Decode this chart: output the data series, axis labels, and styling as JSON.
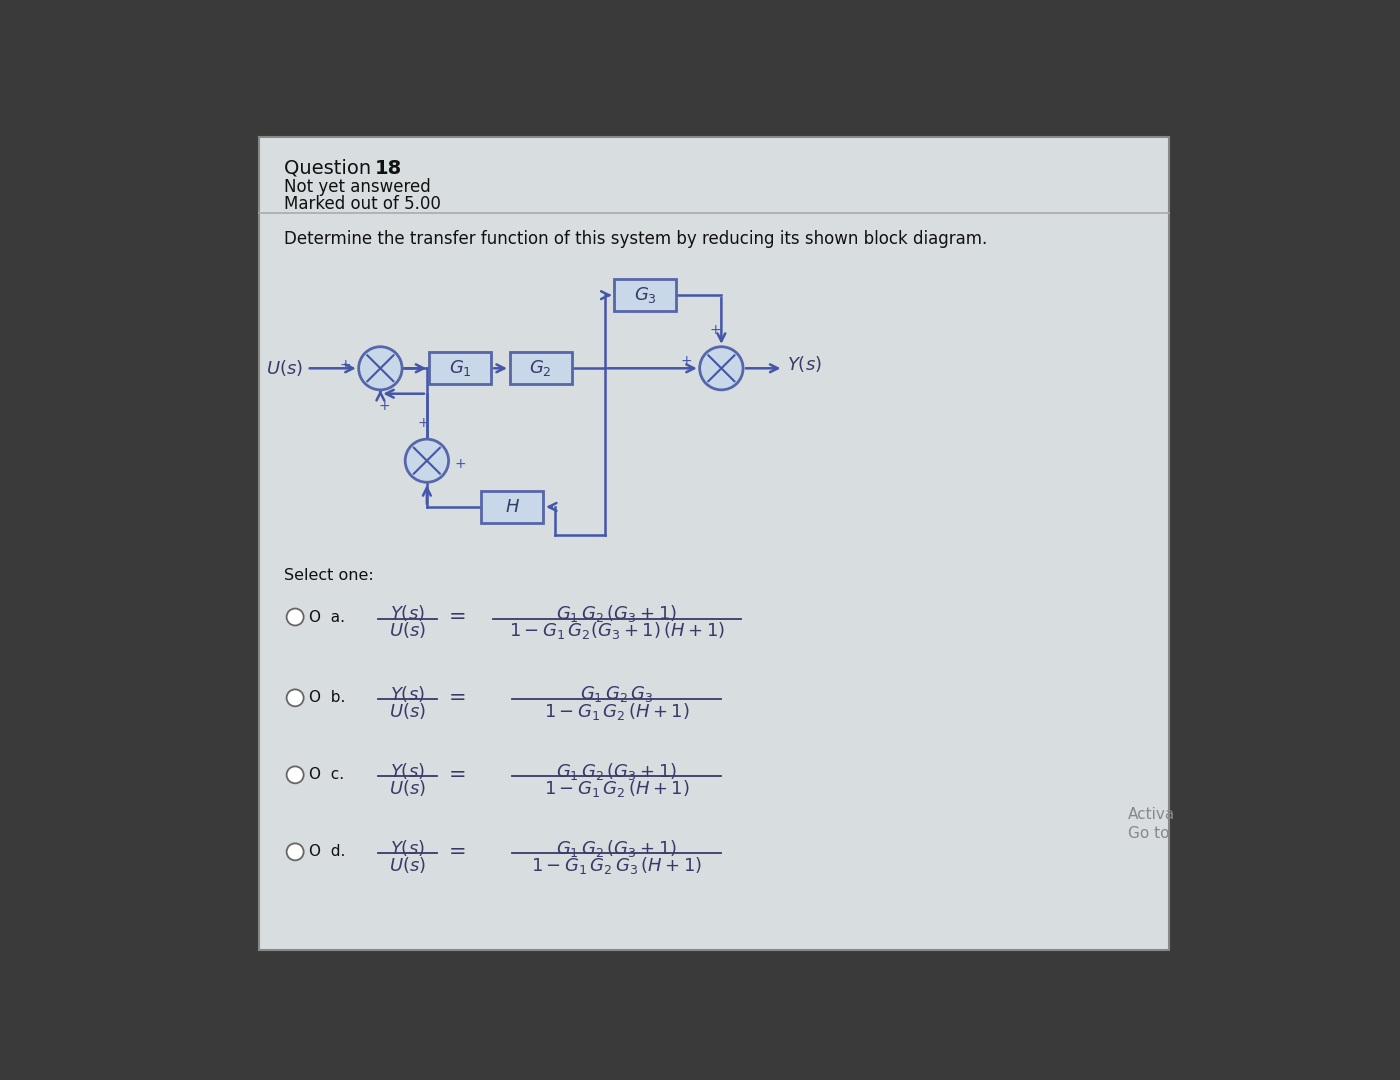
{
  "bg_outer": "#3a3a3a",
  "bg_panel": "#d8dde0",
  "panel_border": "#888888",
  "header_sep_color": "#aaaaaa",
  "text_dark": "#111111",
  "text_color": "#3a3a6a",
  "box_fill": "#c8d8e8",
  "box_edge": "#5566aa",
  "line_color": "#4455aa",
  "circle_fill": "#c8d8e8",
  "circle_edge": "#5566aa",
  "problem_text": "Determine the transfer function of this system by reducing its shown block diagram.",
  "select_text": "Select one:",
  "q_num": "18",
  "q_status": "Not yet answered",
  "q_marked": "Marked out of 5.00"
}
